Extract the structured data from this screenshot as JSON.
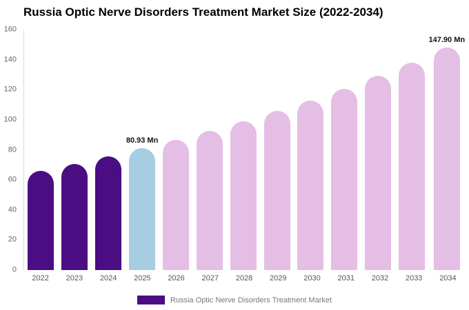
{
  "chart_data": {
    "type": "bar",
    "title": "Russia Optic Nerve Disorders Treatment Market Size (2022-2034)",
    "categories": [
      "2022",
      "2023",
      "2024",
      "2025",
      "2026",
      "2027",
      "2028",
      "2029",
      "2030",
      "2031",
      "2032",
      "2033",
      "2034"
    ],
    "values": [
      66.2,
      70.8,
      75.7,
      80.93,
      86.5,
      92.5,
      98.9,
      105.7,
      113.0,
      120.8,
      129.2,
      138.1,
      147.9
    ],
    "unit": "Mn",
    "xlabel": "",
    "ylabel": "",
    "ylim": [
      0,
      160
    ],
    "yticks": [
      0,
      20,
      40,
      60,
      80,
      100,
      120,
      140,
      160
    ],
    "grid": false,
    "legend_position": "bottom",
    "bar_roles": [
      "historical",
      "historical",
      "historical",
      "current",
      "forecast",
      "forecast",
      "forecast",
      "forecast",
      "forecast",
      "forecast",
      "forecast",
      "forecast",
      "forecast"
    ],
    "colors": {
      "historical": "#4A0D82",
      "current": "#A7CDE2",
      "forecast": "#E4BEE4"
    },
    "annotations": [
      {
        "category": "2025",
        "text": "80.93 Mn"
      },
      {
        "category": "2034",
        "text": "147.90 Mn"
      }
    ]
  },
  "legend": {
    "label": "Russia Optic Nerve Disorders Treatment Market"
  }
}
